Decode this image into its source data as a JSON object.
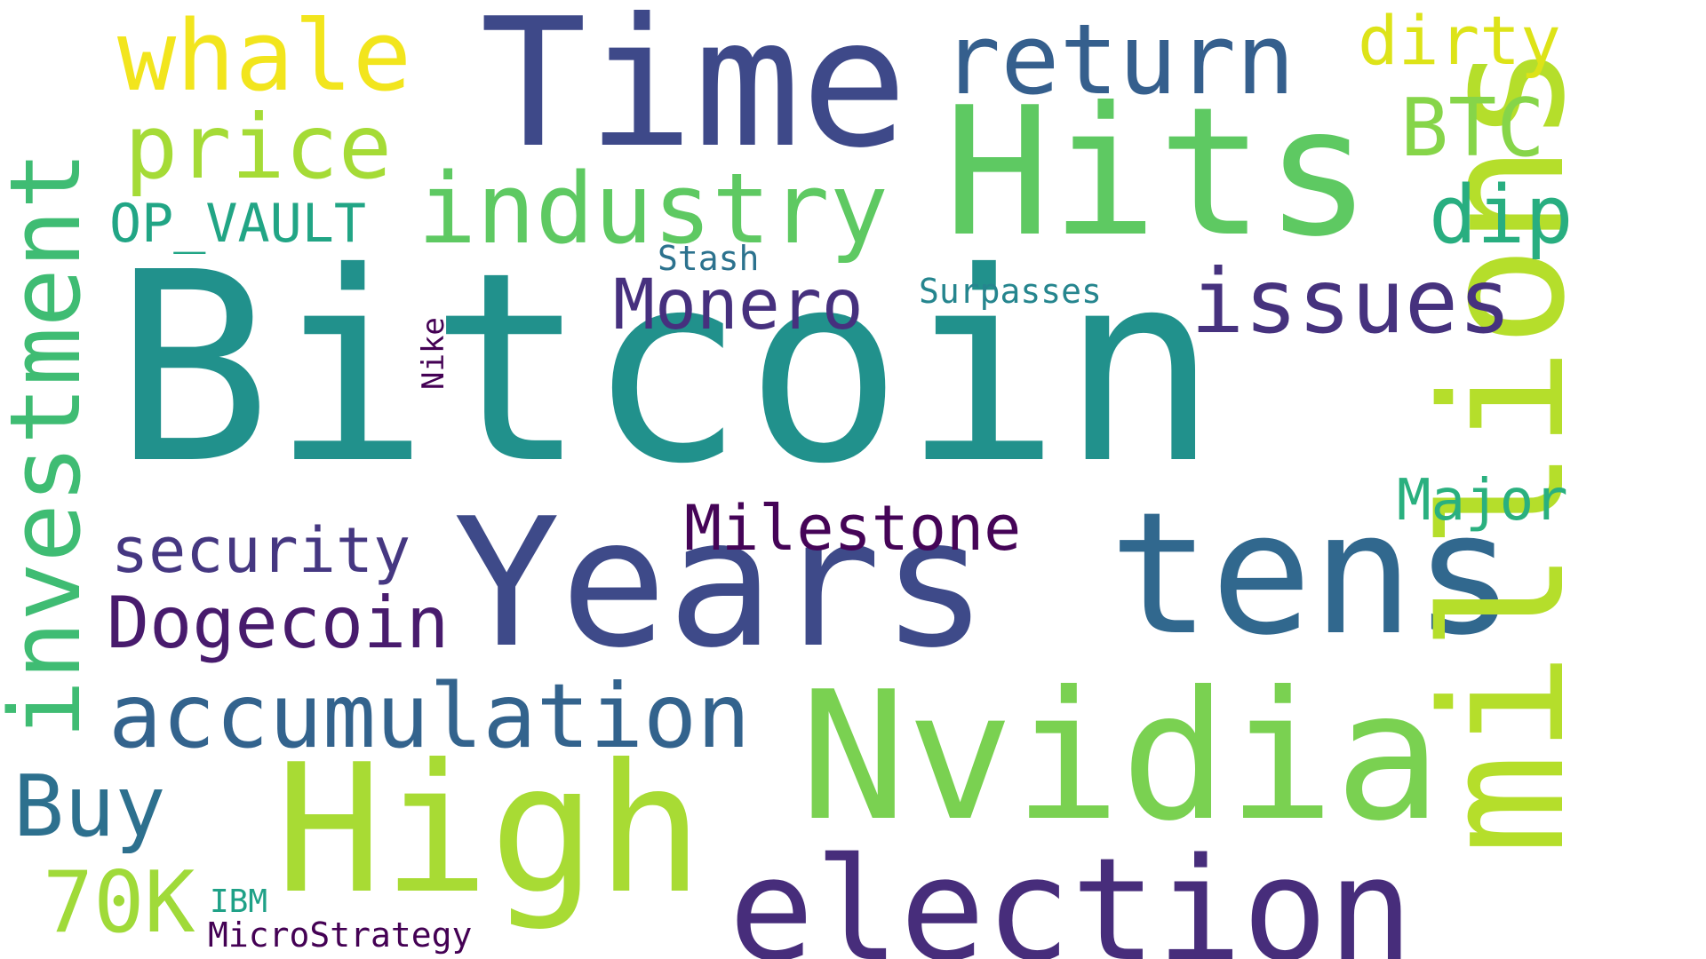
{
  "words": [
    {
      "text": "Bitcoin",
      "color": "#21918c"
    },
    {
      "text": "Years",
      "color": "#3e4a89"
    },
    {
      "text": "tens",
      "color": "#31688e"
    },
    {
      "text": "Time",
      "color": "#3e4989"
    },
    {
      "text": "Hits",
      "color": "#5ec962"
    },
    {
      "text": "millions",
      "color": "#b5de2b"
    },
    {
      "text": "High",
      "color": "#a8db34"
    },
    {
      "text": "Nvidia",
      "color": "#7ad151"
    },
    {
      "text": "election",
      "color": "#472d7b"
    },
    {
      "text": "investment",
      "color": "#3fbc73"
    },
    {
      "text": "industry",
      "color": "#5ec962"
    },
    {
      "text": "return",
      "color": "#355f8d"
    },
    {
      "text": "whale",
      "color": "#f2e51d"
    },
    {
      "text": "price",
      "color": "#a5db36"
    },
    {
      "text": "accumulation",
      "color": "#33638d"
    },
    {
      "text": "issues",
      "color": "#46327e"
    },
    {
      "text": "dirty",
      "color": "#dde318"
    },
    {
      "text": "BTC",
      "color": "#86d549"
    },
    {
      "text": "dip",
      "color": "#28ae80"
    },
    {
      "text": "Monero",
      "color": "#46307e"
    },
    {
      "text": "security",
      "color": "#453781"
    },
    {
      "text": "Dogecoin",
      "color": "#481b6d"
    },
    {
      "text": "Milestone",
      "color": "#450457"
    },
    {
      "text": "Major",
      "color": "#2ab07f"
    },
    {
      "text": "Buy",
      "color": "#2d708e"
    },
    {
      "text": "70K",
      "color": "#a0da39"
    },
    {
      "text": "OP_VAULT",
      "color": "#21a585"
    },
    {
      "text": "Stash",
      "color": "#2c728e"
    },
    {
      "text": "Surpasses",
      "color": "#25858e"
    },
    {
      "text": "Nike",
      "color": "#440154"
    },
    {
      "text": "IBM",
      "color": "#1fa187"
    },
    {
      "text": "MicroStrategy",
      "color": "#440154"
    }
  ]
}
